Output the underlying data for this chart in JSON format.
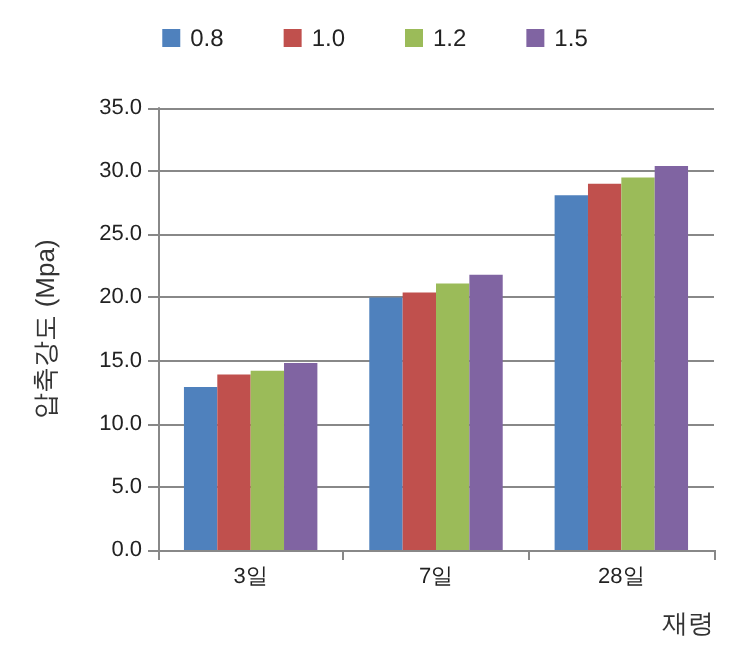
{
  "chart_data": {
    "type": "bar",
    "ylabel": "압축강도 (Mpa)",
    "xlabel": "재령",
    "categories": [
      "3일",
      "7일",
      "28일"
    ],
    "series": [
      {
        "name": "0.8",
        "color": "#4f81bd",
        "values": [
          12.9,
          20.0,
          28.1
        ]
      },
      {
        "name": "1.0",
        "color": "#c0504d",
        "values": [
          13.9,
          20.4,
          29.0
        ]
      },
      {
        "name": "1.2",
        "color": "#9bbb59",
        "values": [
          14.2,
          21.1,
          29.5
        ]
      },
      {
        "name": "1.5",
        "color": "#8064a2",
        "values": [
          14.8,
          21.8,
          30.4
        ]
      }
    ],
    "ylim": [
      0,
      35
    ],
    "yticks": [
      {
        "value": 0,
        "label": "0.0"
      },
      {
        "value": 5,
        "label": "5.0"
      },
      {
        "value": 10,
        "label": "10.0"
      },
      {
        "value": 15,
        "label": "15.0"
      },
      {
        "value": 20,
        "label": "20.0"
      },
      {
        "value": 25,
        "label": "25.0"
      },
      {
        "value": 30,
        "label": "30.0"
      },
      {
        "value": 35,
        "label": "35.0"
      }
    ],
    "grid": "y",
    "legend": "top"
  }
}
